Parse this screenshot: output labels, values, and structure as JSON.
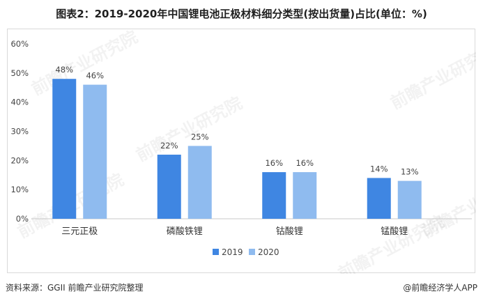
{
  "title": "图表2：2019-2020年中国锂电池正极材料细分类型(按出货量)占比(单位：%)",
  "source_text": "资料来源：GGII 前瞻产业研究院整理",
  "brand_text": "@前瞻经济学人APP",
  "watermark_text": "前瞻产业研究院",
  "chart_data": {
    "type": "bar",
    "title": "图表2：2019-2020年中国锂电池正极材料细分类型(按出货量)占比(单位：%)",
    "xlabel": "",
    "ylabel": "",
    "categories": [
      "三元正极",
      "磷酸铁锂",
      "钴酸锂",
      "锰酸锂"
    ],
    "series": [
      {
        "name": "2019",
        "values": [
          48,
          22,
          16,
          14
        ],
        "color": "#3f86e2"
      },
      {
        "name": "2020",
        "values": [
          46,
          25,
          16,
          13
        ],
        "color": "#8fbbef"
      }
    ],
    "value_suffix": "%",
    "ylim": [
      0,
      60
    ],
    "yticks": [
      0,
      10,
      20,
      30,
      40,
      50,
      60
    ],
    "ytick_labels": [
      "0%",
      "10%",
      "20%",
      "30%",
      "40%",
      "50%",
      "60%"
    ],
    "grid": false,
    "legend_position": "bottom"
  }
}
